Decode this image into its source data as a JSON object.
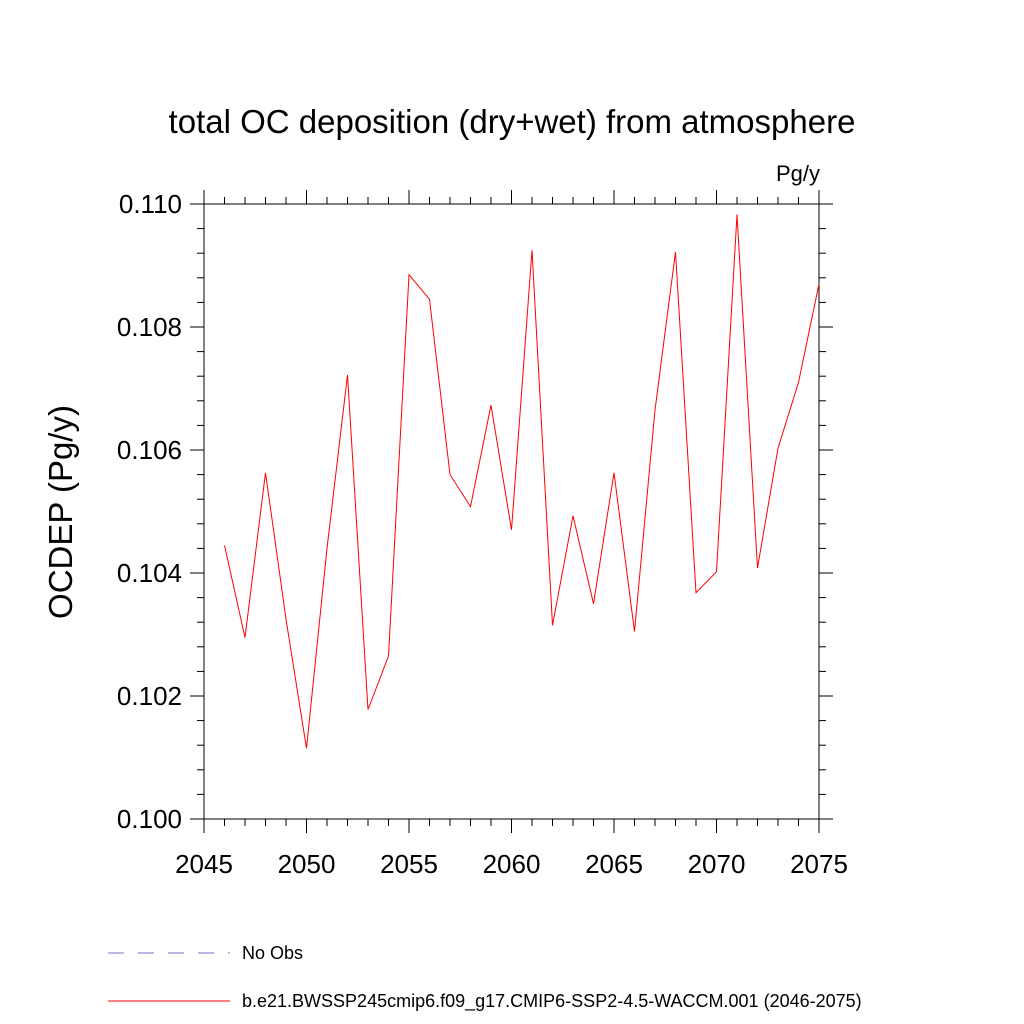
{
  "chart_data": {
    "type": "line",
    "title": "total OC deposition (dry+wet) from atmosphere",
    "units_label": "Pg/y",
    "ylabel": "OCDEP  (Pg/y)",
    "xlabel": "",
    "xlim": [
      2045,
      2075
    ],
    "ylim": [
      0.1,
      0.11
    ],
    "x_ticks": [
      "2045",
      "2050",
      "2055",
      "2060",
      "2065",
      "2070",
      "2075"
    ],
    "x_tick_values": [
      2045,
      2050,
      2055,
      2060,
      2065,
      2070,
      2075
    ],
    "y_ticks": [
      "0.100",
      "0.102",
      "0.104",
      "0.106",
      "0.108",
      "0.110"
    ],
    "y_tick_values": [
      0.1,
      0.102,
      0.104,
      0.106,
      0.108,
      0.11
    ],
    "grid": false,
    "legend_placement": "bottom-left",
    "series": [
      {
        "name": "b.e21.BWSSP245cmip6.f09_g17.CMIP6-SSP2-4.5-WACCM.001 (2046-2075)",
        "color": "#ff0000",
        "style": "solid",
        "x": [
          2046,
          2047,
          2048,
          2049,
          2050,
          2051,
          2052,
          2053,
          2054,
          2055,
          2056,
          2057,
          2058,
          2059,
          2060,
          2061,
          2062,
          2063,
          2064,
          2065,
          2066,
          2067,
          2068,
          2069,
          2070,
          2071,
          2072,
          2073,
          2074,
          2075
        ],
        "values": [
          0.10445,
          0.10295,
          0.10563,
          0.10325,
          0.10115,
          0.1044,
          0.10722,
          0.10178,
          0.10265,
          0.10885,
          0.10845,
          0.1056,
          0.10508,
          0.10673,
          0.1047,
          0.10925,
          0.10315,
          0.10493,
          0.1035,
          0.10563,
          0.10305,
          0.10665,
          0.10922,
          0.10368,
          0.10402,
          0.10983,
          0.10408,
          0.10603,
          0.1071,
          0.1087
        ]
      }
    ],
    "legend": [
      {
        "label": "No Obs",
        "color": "#7a72c0",
        "style": "dashed"
      },
      {
        "label": "b.e21.BWSSP245cmip6.f09_g17.CMIP6-SSP2-4.5-WACCM.001 (2046-2075)",
        "color": "#ff0000",
        "style": "solid"
      }
    ]
  }
}
